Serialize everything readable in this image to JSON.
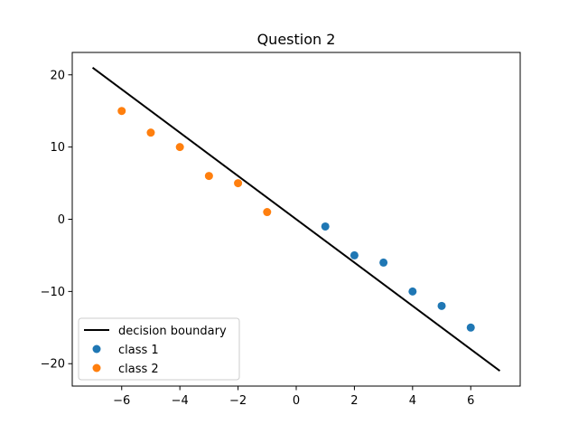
{
  "chart_data": {
    "type": "scatter",
    "title": "Question 2",
    "xlabel": "",
    "ylabel": "",
    "xlim": [
      -7.7,
      7.7
    ],
    "ylim": [
      -23.1,
      23.1
    ],
    "x_ticks": [
      -6,
      -4,
      -2,
      0,
      2,
      4,
      6
    ],
    "y_ticks": [
      -20,
      -10,
      0,
      10,
      20
    ],
    "x_tick_labels": [
      "−6",
      "−4",
      "−2",
      "0",
      "2",
      "4",
      "6"
    ],
    "y_tick_labels": [
      "−20",
      "−10",
      "0",
      "10",
      "20"
    ],
    "grid": false,
    "legend_position": "lower-left",
    "line": {
      "name": "decision boundary",
      "color": "#000000",
      "x": [
        -7,
        7
      ],
      "y": [
        21,
        -21
      ]
    },
    "series": [
      {
        "name": "class 1",
        "color": "#1f77b4",
        "x": [
          1,
          2,
          3,
          4,
          5,
          6
        ],
        "y": [
          -1,
          -5,
          -6,
          -10,
          -12,
          -15
        ]
      },
      {
        "name": "class 2",
        "color": "#ff7f0e",
        "x": [
          -6,
          -5,
          -4,
          -3,
          -2,
          -1
        ],
        "y": [
          15,
          12,
          10,
          6,
          5,
          1
        ]
      }
    ]
  }
}
